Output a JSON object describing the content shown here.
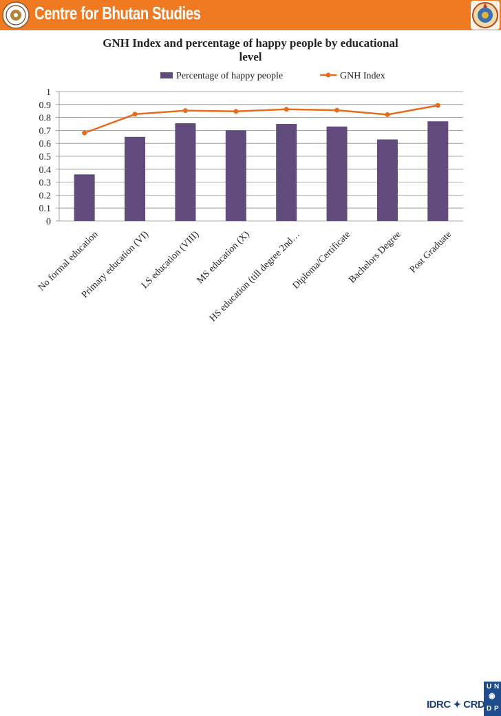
{
  "header": {
    "title": "Centre for Bhutan Studies",
    "left_logo_icon": "cbs-logo-icon",
    "right_logo_icon": "emblem-icon",
    "bar_color": "#f07a22"
  },
  "footer": {
    "idrc_text": "IDRC",
    "crdi_text": "CRDI",
    "undp_letters": [
      "U",
      "N",
      "D",
      "P"
    ],
    "idrc_logo_icon": "idrc-logo-icon",
    "undp_logo_icon": "undp-logo-icon"
  },
  "chart_data": {
    "type": "bar",
    "title": "GNH Index and percentage of happy people by educational level",
    "title_lines": [
      "GNH Index and percentage of happy people by educational",
      "level"
    ],
    "categories": [
      "No formal education",
      "Primary education (VI)",
      "LS education (VIII)",
      "MS education (X)",
      "HS education (till degree 2nd…",
      "Diploma/Certificate",
      "Bachelors Degree",
      "Post Graduate"
    ],
    "series": [
      {
        "name": "Percentage of happy people",
        "type": "bar",
        "color": "#614a7c",
        "values": [
          0.36,
          0.65,
          0.755,
          0.7,
          0.75,
          0.73,
          0.63,
          0.77
        ]
      },
      {
        "name": "GNH Index",
        "type": "line",
        "color": "#e46c1e",
        "values": [
          0.68,
          0.825,
          0.853,
          0.847,
          0.863,
          0.856,
          0.822,
          0.893
        ]
      }
    ],
    "ylim": [
      0,
      1
    ],
    "yticks": [
      "0",
      "0.1",
      "0.2",
      "0.3",
      "0.4",
      "0.5",
      "0.6",
      "0.7",
      "0.8",
      "0.9",
      "1"
    ],
    "grid": true,
    "legend": "top"
  }
}
